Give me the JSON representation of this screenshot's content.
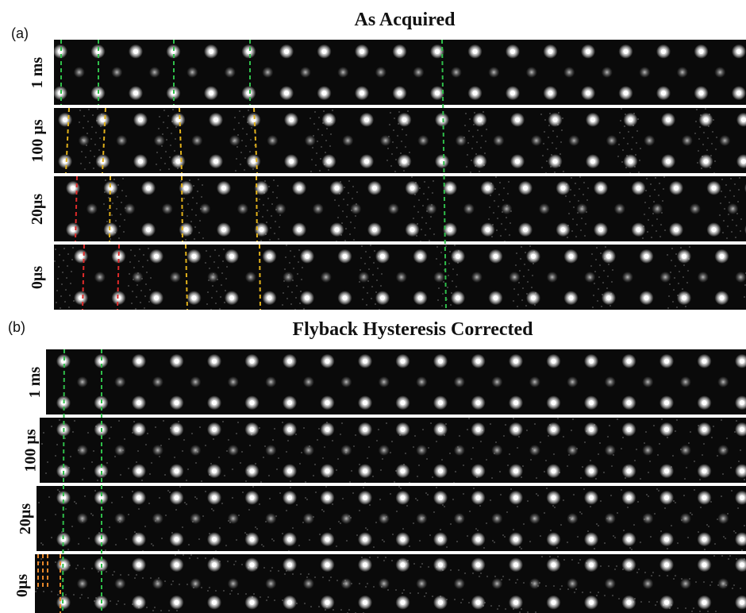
{
  "figure": {
    "panel_a": {
      "letter": "(a)",
      "title": "As Acquired",
      "rows": [
        {
          "label": "1 ms"
        },
        {
          "label": "100 µs"
        },
        {
          "label": "20µs"
        },
        {
          "label": "0µs"
        }
      ]
    },
    "panel_b": {
      "letter": "(b)",
      "title": "Flyback Hysteresis Corrected",
      "rows": [
        {
          "label": "1 ms"
        },
        {
          "label": "100 µs"
        },
        {
          "label": "20µs"
        },
        {
          "label": "0µs"
        }
      ]
    },
    "colors": {
      "background": "#0a0a0a",
      "atom": "#ffffff",
      "guide_green": "#2fbf4a",
      "guide_yellow": "#e3b21a",
      "guide_red": "#e02a2a",
      "guide_orange": "#e8872a"
    }
  }
}
